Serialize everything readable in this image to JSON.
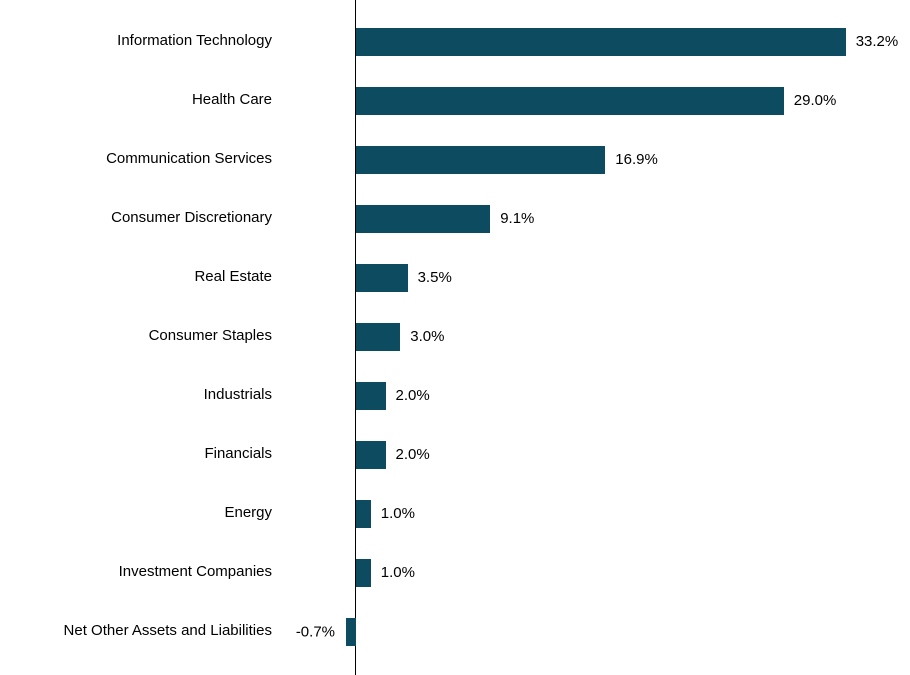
{
  "chart_data": {
    "type": "bar",
    "orientation": "horizontal",
    "title": "",
    "xlabel": "",
    "ylabel": "",
    "legend": "none",
    "grid": false,
    "bar_color": "#0d4c60",
    "axis_color": "#000000",
    "xlim": [
      -1,
      34
    ],
    "categories": [
      "Information Technology",
      "Health Care",
      "Communication Services",
      "Consumer Discretionary",
      "Real Estate",
      "Consumer Staples",
      "Industrials",
      "Financials",
      "Energy",
      "Investment Companies",
      "Net Other Assets and Liabilities"
    ],
    "values": [
      33.2,
      29.0,
      16.9,
      9.1,
      3.5,
      3.0,
      2.0,
      2.0,
      1.0,
      1.0,
      -0.7
    ],
    "value_labels": [
      "33.2%",
      "29.0%",
      "16.9%",
      "9.1%",
      "3.5%",
      "3.0%",
      "2.0%",
      "2.0%",
      "1.0%",
      "1.0%",
      "-0.7%"
    ]
  }
}
